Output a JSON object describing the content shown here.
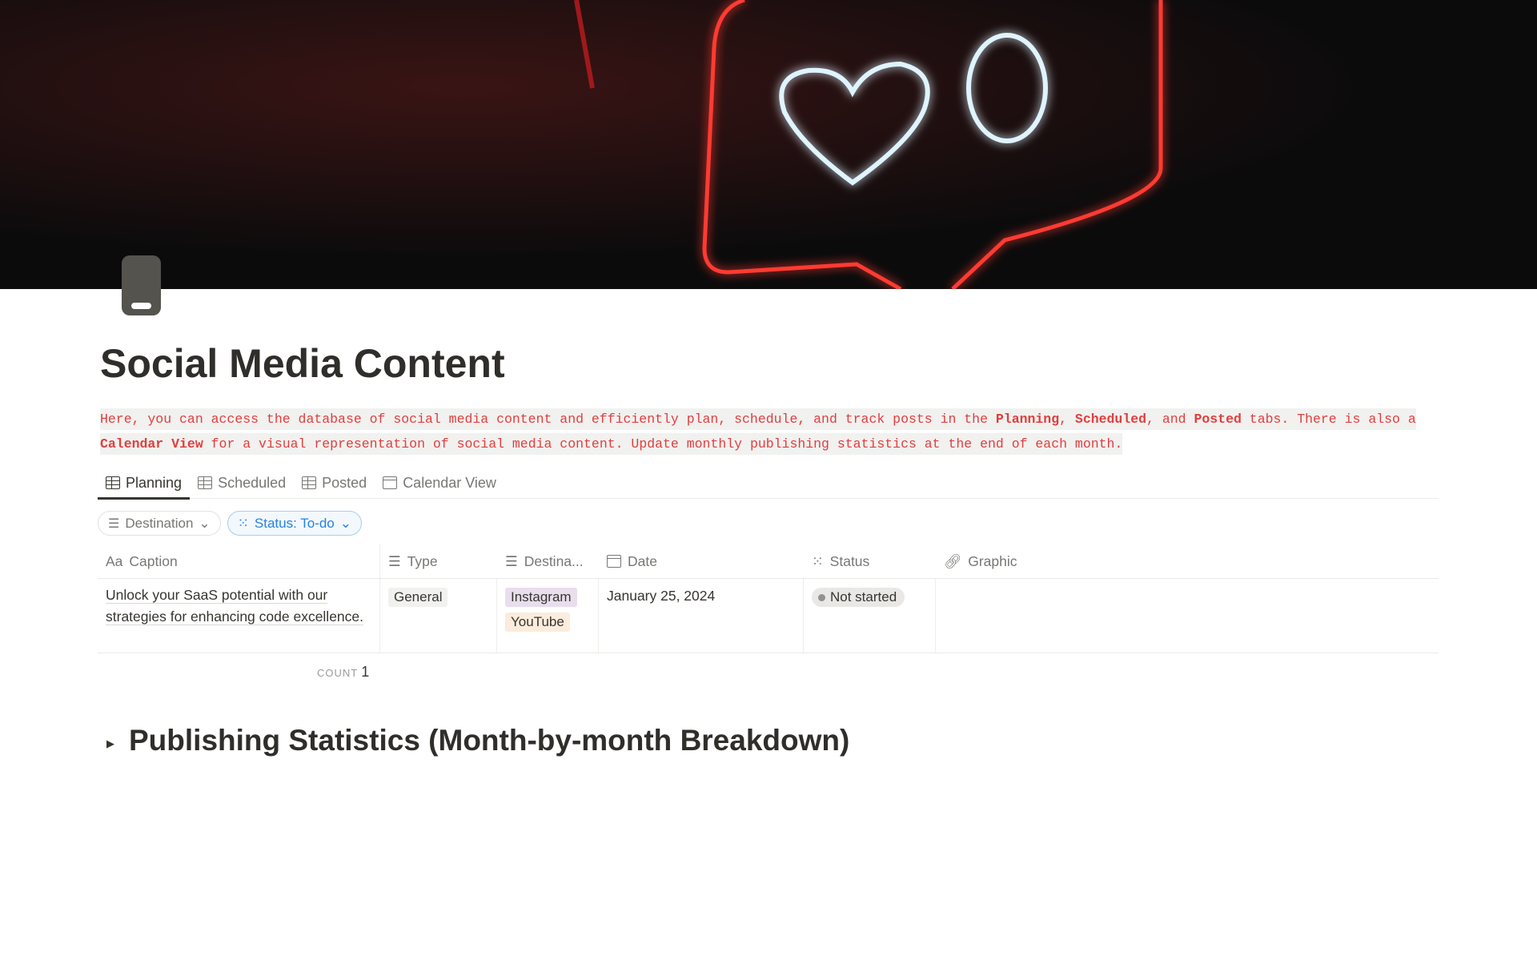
{
  "page": {
    "title": "Social Media Content"
  },
  "description": {
    "parts": [
      "Here, you can access the database of social media content and efficiently plan, schedule, and track posts in the ",
      "Planning",
      ", ",
      "Scheduled",
      ", and ",
      "Posted",
      " tabs. There is also a ",
      "Calendar View",
      " for a visual representation of social media content. Update monthly publishing statistics at the end of each month."
    ]
  },
  "tabs": [
    {
      "label": "Planning",
      "icon": "table-icon",
      "active": true
    },
    {
      "label": "Scheduled",
      "icon": "table-icon"
    },
    {
      "label": "Posted",
      "icon": "table-icon"
    },
    {
      "label": "Calendar View",
      "icon": "calendar-icon"
    }
  ],
  "filters": [
    {
      "label": "Destination",
      "icon": "list-icon"
    },
    {
      "label": "Status: To-do",
      "icon": "status-icon",
      "color": "#2383e2"
    }
  ],
  "table": {
    "columns": [
      {
        "label": "Caption",
        "icon": "text-icon",
        "glyph": "Aa"
      },
      {
        "label": "Type",
        "icon": "list-icon"
      },
      {
        "label": "Destina...",
        "icon": "list-icon"
      },
      {
        "label": "Date",
        "icon": "calendar-icon"
      },
      {
        "label": "Status",
        "icon": "status-icon"
      },
      {
        "label": "Graphic",
        "icon": "link-icon"
      }
    ],
    "rows": [
      {
        "caption": "Unlock your SaaS potential with our strategies for enhancing code excellence.",
        "type": "General",
        "destinations": [
          {
            "label": "Instagram",
            "color": "#e8deee"
          },
          {
            "label": "YouTube",
            "color": "#fbecdd"
          }
        ],
        "date": "January 25, 2024",
        "status": "Not started",
        "graphic": ""
      }
    ],
    "count_label": "COUNT",
    "count": "1"
  },
  "section": {
    "heading": "Publishing Statistics (Month-by-month Breakdown)",
    "toggle": "▶"
  }
}
